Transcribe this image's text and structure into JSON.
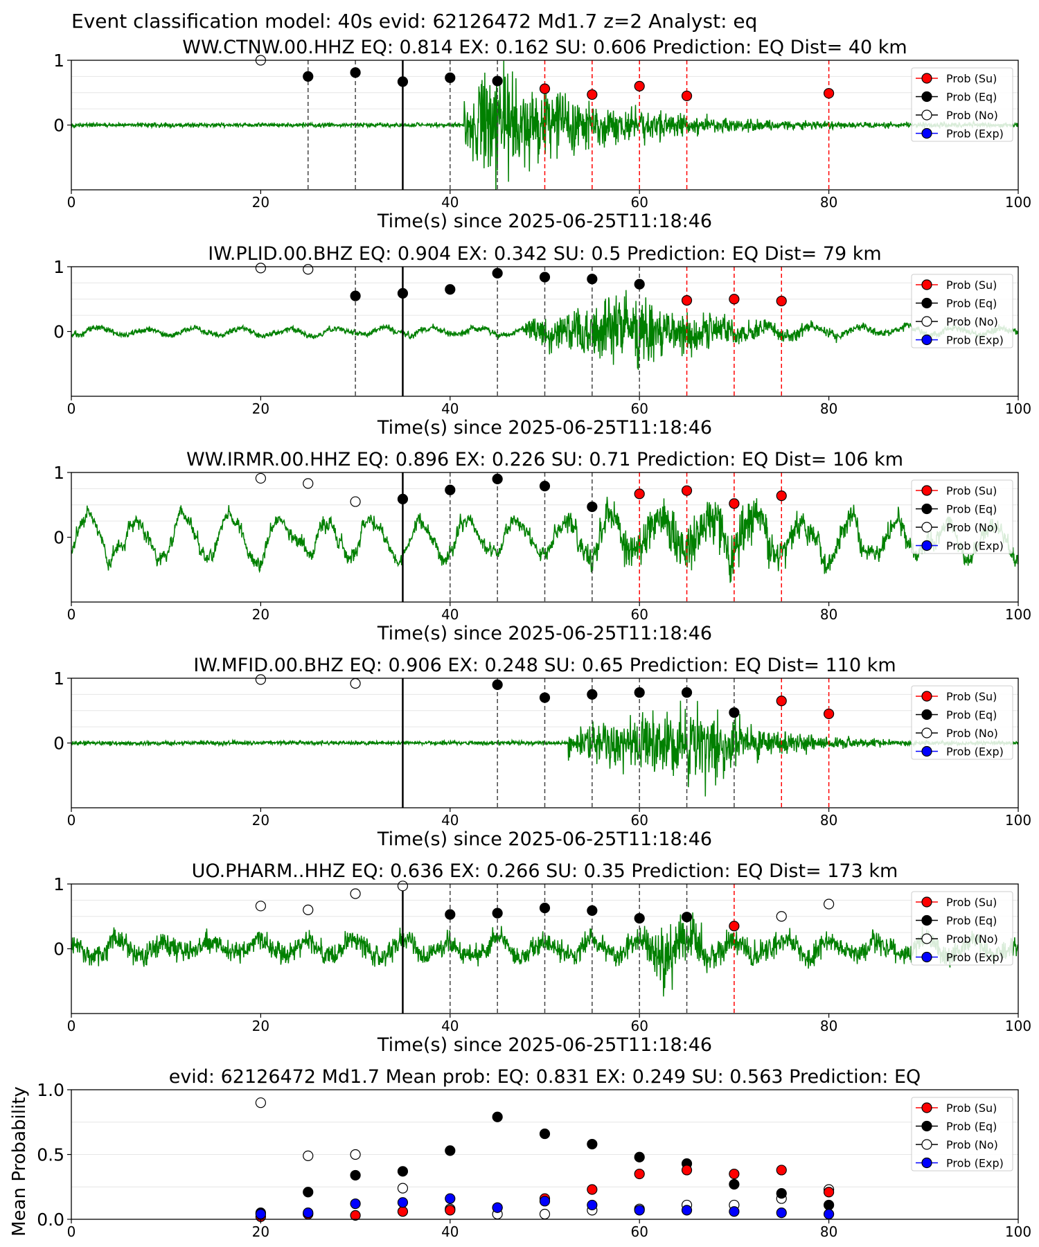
{
  "figure_title": "Event classification model: 40s evid: 62126472 Md1.7 z=2 Analyst: eq",
  "xlabel": "Time(s) since 2025-06-25T11:18:46",
  "legend": [
    {
      "label": "Prob (Su)",
      "color": "#ff0000",
      "fill": "#ff0000"
    },
    {
      "label": "Prob (Eq)",
      "color": "#000000",
      "fill": "#000000"
    },
    {
      "label": "Prob (No)",
      "color": "#000000",
      "fill": "#ffffff"
    },
    {
      "label": "Prob (Exp)",
      "color": "#0000ff",
      "fill": "#0000ff"
    }
  ],
  "colors": {
    "waveform": "#008000",
    "su": "#ff0000",
    "eq": "#000000",
    "exp": "#0000ff",
    "origin_line": "#000000"
  },
  "chart_data": [
    {
      "type": "scatter",
      "title": "WW.CTNW.00.HHZ   EQ: 0.814  EX: 0.162  SU: 0.606   Prediction: EQ    Dist= 40 km",
      "xlim": [
        0,
        100
      ],
      "ylim": [
        -1,
        1
      ],
      "xticks": [
        0,
        20,
        40,
        60,
        80,
        100
      ],
      "yticks": [
        0,
        1
      ],
      "origin_time": 35,
      "signal": {
        "onset": 41.5,
        "peak": 44,
        "decay": 12,
        "amp": 1.6,
        "noise": 0.03,
        "seed": 11
      },
      "eq_lines": [
        25,
        30,
        40,
        45
      ],
      "su_lines": [
        50,
        55,
        60,
        65,
        80
      ],
      "points": {
        "no": [
          [
            20,
            1.0
          ]
        ],
        "eq": [
          [
            25,
            0.75
          ],
          [
            30,
            0.81
          ],
          [
            35,
            0.67
          ],
          [
            40,
            0.73
          ],
          [
            45,
            0.68
          ]
        ],
        "su": [
          [
            50,
            0.56
          ],
          [
            55,
            0.47
          ],
          [
            60,
            0.6
          ],
          [
            65,
            0.45
          ],
          [
            80,
            0.49
          ]
        ],
        "exp": []
      }
    },
    {
      "type": "scatter",
      "title": "IW.PLID.00.BHZ   EQ: 0.904  EX: 0.342  SU: 0.5   Prediction: EQ    Dist= 79 km",
      "xlim": [
        0,
        100
      ],
      "ylim": [
        -1,
        1
      ],
      "xticks": [
        0,
        20,
        40,
        60,
        80,
        100
      ],
      "yticks": [
        0,
        1
      ],
      "origin_time": 35,
      "signal": {
        "onset": 48,
        "peak": 60,
        "decay": 9,
        "amp": 0.9,
        "noise": 0.04,
        "wave": 0.07,
        "seed": 23
      },
      "eq_lines": [
        30,
        45,
        50,
        55,
        60
      ],
      "su_lines": [
        65,
        70,
        75
      ],
      "points": {
        "no": [
          [
            20,
            0.98
          ],
          [
            25,
            0.96
          ]
        ],
        "eq": [
          [
            30,
            0.55
          ],
          [
            35,
            0.59
          ],
          [
            40,
            0.65
          ],
          [
            45,
            0.9
          ],
          [
            50,
            0.84
          ],
          [
            55,
            0.81
          ],
          [
            60,
            0.73
          ]
        ],
        "su": [
          [
            65,
            0.48
          ],
          [
            70,
            0.5
          ],
          [
            75,
            0.47
          ]
        ],
        "exp": []
      }
    },
    {
      "type": "scatter",
      "title": "WW.IRMR.00.HHZ   EQ: 0.896  EX: 0.226  SU: 0.71   Prediction: EQ    Dist= 106 km",
      "xlim": [
        0,
        100
      ],
      "ylim": [
        -1,
        1
      ],
      "xticks": [
        0,
        20,
        40,
        60,
        80,
        100
      ],
      "yticks": [
        0,
        1
      ],
      "origin_time": 35,
      "signal": {
        "onset": 52,
        "peak": 68,
        "decay": 14,
        "amp": 0.7,
        "noise": 0.08,
        "wave": 0.35,
        "seed": 37
      },
      "eq_lines": [
        40,
        45,
        50,
        55
      ],
      "su_lines": [
        60,
        65,
        70,
        75
      ],
      "points": {
        "no": [
          [
            20,
            0.91
          ],
          [
            25,
            0.83
          ],
          [
            30,
            0.55
          ]
        ],
        "eq": [
          [
            35,
            0.59
          ],
          [
            40,
            0.73
          ],
          [
            45,
            0.9
          ],
          [
            50,
            0.79
          ],
          [
            55,
            0.47
          ]
        ],
        "su": [
          [
            60,
            0.67
          ],
          [
            65,
            0.72
          ],
          [
            70,
            0.52
          ],
          [
            75,
            0.64
          ]
        ],
        "exp": []
      }
    },
    {
      "type": "scatter",
      "title": "IW.MFID.00.BHZ   EQ: 0.906  EX: 0.248  SU: 0.65   Prediction: EQ    Dist= 110 km",
      "xlim": [
        0,
        100
      ],
      "ylim": [
        -1,
        1
      ],
      "xticks": [
        0,
        20,
        40,
        60,
        80,
        100
      ],
      "yticks": [
        0,
        1
      ],
      "origin_time": 35,
      "signal": {
        "onset": 52.5,
        "peak": 67,
        "decay": 7,
        "amp": 1.0,
        "noise": 0.03,
        "seed": 53
      },
      "eq_lines": [
        45,
        50,
        55,
        60,
        65,
        70
      ],
      "su_lines": [
        75,
        80
      ],
      "points": {
        "no": [
          [
            20,
            0.98
          ],
          [
            30,
            0.92
          ]
        ],
        "eq": [
          [
            45,
            0.9
          ],
          [
            50,
            0.7
          ],
          [
            55,
            0.75
          ],
          [
            60,
            0.78
          ],
          [
            65,
            0.78
          ],
          [
            70,
            0.47
          ]
        ],
        "su": [
          [
            75,
            0.65
          ],
          [
            80,
            0.45
          ]
        ],
        "exp": []
      }
    },
    {
      "type": "scatter",
      "title": "UO.PHARM..HHZ   EQ: 0.636  EX: 0.266  SU: 0.35   Prediction: EQ    Dist= 173 km",
      "xlim": [
        0,
        100
      ],
      "ylim": [
        -1,
        1
      ],
      "xticks": [
        0,
        20,
        40,
        60,
        80,
        100
      ],
      "yticks": [
        0,
        1
      ],
      "origin_time": 35,
      "signal": {
        "onset": 60,
        "peak": 63,
        "decay": 6,
        "amp": 0.8,
        "noise": 0.15,
        "wave": 0.15,
        "seed": 71
      },
      "eq_lines": [
        40,
        45,
        50,
        55,
        60,
        65
      ],
      "su_lines": [
        70
      ],
      "points": {
        "no": [
          [
            20,
            0.66
          ],
          [
            25,
            0.6
          ],
          [
            30,
            0.85
          ],
          [
            35,
            0.97
          ],
          [
            75,
            0.5
          ],
          [
            80,
            0.69
          ]
        ],
        "eq": [
          [
            40,
            0.53
          ],
          [
            45,
            0.55
          ],
          [
            50,
            0.63
          ],
          [
            55,
            0.59
          ],
          [
            60,
            0.47
          ],
          [
            65,
            0.49
          ]
        ],
        "su": [
          [
            70,
            0.35
          ]
        ],
        "exp": []
      }
    },
    {
      "type": "scatter",
      "title": "evid: 62126472  Md1.7   Mean prob:   EQ: 0.831  EX: 0.249  SU: 0.563   Prediction: EQ",
      "ylabel": "Mean Probability",
      "xlim": [
        0,
        100
      ],
      "ylim": [
        0,
        1
      ],
      "xticks": [
        0,
        20,
        40,
        60,
        80,
        100
      ],
      "yticks": [
        0.0,
        0.5,
        1.0
      ],
      "ytick_labels": [
        "0.0",
        "0.5",
        "1.0"
      ],
      "points": {
        "no": [
          [
            20,
            0.9
          ],
          [
            25,
            0.49
          ],
          [
            30,
            0.5
          ],
          [
            35,
            0.24
          ],
          [
            40,
            0.08
          ],
          [
            45,
            0.04
          ],
          [
            50,
            0.04
          ],
          [
            55,
            0.07
          ],
          [
            60,
            0.08
          ],
          [
            65,
            0.11
          ],
          [
            70,
            0.11
          ],
          [
            75,
            0.16
          ],
          [
            80,
            0.23
          ]
        ],
        "eq": [
          [
            20,
            0.05
          ],
          [
            25,
            0.21
          ],
          [
            30,
            0.34
          ],
          [
            35,
            0.37
          ],
          [
            40,
            0.53
          ],
          [
            45,
            0.79
          ],
          [
            50,
            0.66
          ],
          [
            55,
            0.58
          ],
          [
            60,
            0.48
          ],
          [
            65,
            0.43
          ],
          [
            70,
            0.27
          ],
          [
            75,
            0.2
          ],
          [
            80,
            0.11
          ]
        ],
        "su": [
          [
            20,
            0.02
          ],
          [
            25,
            0.04
          ],
          [
            30,
            0.03
          ],
          [
            35,
            0.06
          ],
          [
            40,
            0.07
          ],
          [
            45,
            0.09
          ],
          [
            50,
            0.16
          ],
          [
            55,
            0.23
          ],
          [
            60,
            0.35
          ],
          [
            65,
            0.38
          ],
          [
            70,
            0.35
          ],
          [
            75,
            0.38
          ],
          [
            80,
            0.21
          ]
        ],
        "exp": [
          [
            20,
            0.04
          ],
          [
            25,
            0.05
          ],
          [
            30,
            0.12
          ],
          [
            35,
            0.13
          ],
          [
            40,
            0.16
          ],
          [
            45,
            0.09
          ],
          [
            50,
            0.14
          ],
          [
            55,
            0.11
          ],
          [
            60,
            0.07
          ],
          [
            65,
            0.07
          ],
          [
            70,
            0.06
          ],
          [
            75,
            0.05
          ],
          [
            80,
            0.04
          ]
        ]
      }
    }
  ]
}
